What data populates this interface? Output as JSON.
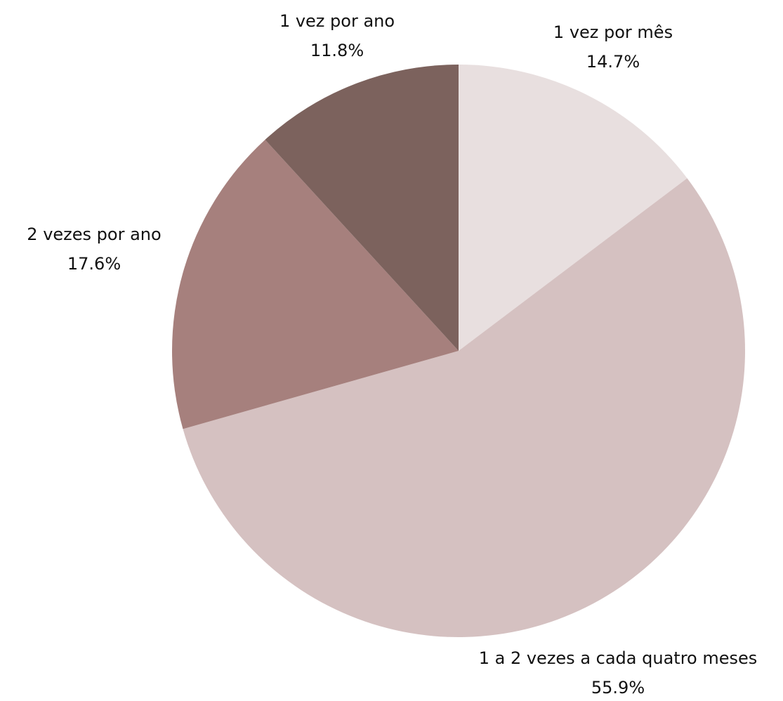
{
  "chart_data": {
    "type": "pie",
    "title": "",
    "start_angle_deg": 0,
    "direction": "clockwise",
    "slices": [
      {
        "label": "1 vez por mês",
        "value": 14.7,
        "value_text": "14.7%",
        "color": "#e8dfdf"
      },
      {
        "label": "1 a 2 vezes a cada quatro meses",
        "value": 55.9,
        "value_text": "55.9%",
        "color": "#d5c1c1"
      },
      {
        "label": "2 vezes por ano",
        "value": 17.6,
        "value_text": "17.6%",
        "color": "#a6807d"
      },
      {
        "label": "1 vez por ano",
        "value": 11.8,
        "value_text": "11.8%",
        "color": "#7c625d"
      }
    ]
  }
}
